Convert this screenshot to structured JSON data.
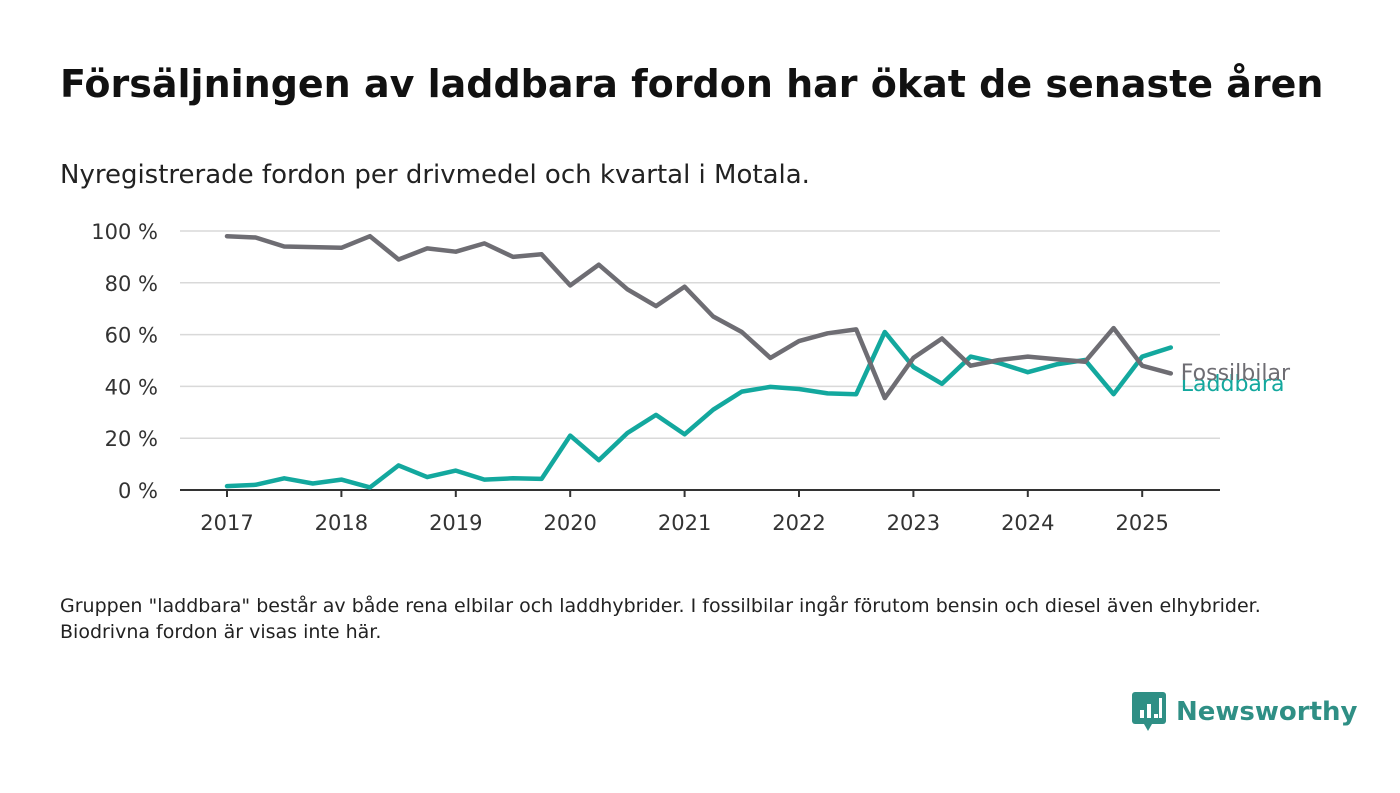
{
  "title": "Försäljningen av laddbara fordon har ökat de senaste åren",
  "subtitle": "Nyregistrerade fordon per drivmedel och kvartal i Motala.",
  "footnote": "Gruppen \"laddbara\" består av både rena elbilar och laddhybrider. I fossilbilar ingår förutom bensin och diesel även elhybrider. Biodrivna fordon är visas inte här.",
  "brand": {
    "name": "Newsworthy",
    "icon": "newsworthy-logo-icon",
    "color": "#2f8f85"
  },
  "chart_data": {
    "type": "line",
    "x_unit": "quarter",
    "x_start": "2017 Q1",
    "ylim": [
      0,
      100
    ],
    "yticks": [
      0,
      20,
      40,
      60,
      80,
      100
    ],
    "ytick_labels": [
      "0 %",
      "20 %",
      "40 %",
      "60 %",
      "80 %",
      "100 %"
    ],
    "xticks": [
      "2017",
      "2018",
      "2019",
      "2020",
      "2021",
      "2022",
      "2023",
      "2024",
      "2025"
    ],
    "grid": true,
    "legend": "inline-right",
    "series": [
      {
        "name": "Fossilbilar",
        "color": "#6e6d73",
        "values": [
          98,
          97.5,
          94,
          93.8,
          93.5,
          98,
          89,
          93.3,
          92,
          95.2,
          90,
          91,
          79,
          87,
          77.5,
          71,
          78.5,
          67,
          61,
          51,
          57.5,
          60.5,
          62,
          35.5,
          51,
          58.5,
          48,
          50.2,
          51.5,
          50.5,
          49.5,
          62.5,
          48,
          45
        ]
      },
      {
        "name": "Laddbara",
        "color": "#13a89e",
        "values": [
          1.5,
          2,
          4.5,
          2.5,
          4,
          1,
          9.5,
          5,
          7.5,
          4,
          4.5,
          4.3,
          21,
          11.5,
          22,
          29,
          21.5,
          31,
          38,
          39.8,
          39,
          37.3,
          37,
          61,
          47.5,
          41,
          51.5,
          49,
          45.5,
          48.5,
          50.2,
          37,
          51.5,
          55
        ]
      }
    ]
  }
}
